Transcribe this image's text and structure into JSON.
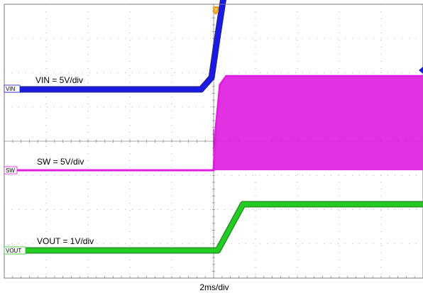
{
  "chart_data": {
    "type": "line",
    "title": "",
    "timebase": "2ms/div",
    "grid": {
      "divisions_x": 10,
      "divisions_y": 8,
      "minor_ticks": true
    },
    "trigger_marker": "T",
    "series": [
      {
        "name": "VIN",
        "annotation": "VIN = 5V/div",
        "color": "#1a1ae6",
        "x_div": [
          0,
          4.7,
          4.95,
          5.1,
          5.25,
          5.45,
          10
        ],
        "y_div": [
          0,
          0,
          0.35,
          1.6,
          2.8,
          3.3,
          3.3
        ]
      },
      {
        "name": "SW",
        "annotation": "SW = 5V/div",
        "color": "#e020e0",
        "x_div": [
          0,
          5.0,
          5.05,
          5.15,
          5.3,
          10
        ],
        "y_div": [
          0,
          0,
          1.2,
          2.5,
          2.75,
          2.75
        ]
      },
      {
        "name": "VOUT",
        "annotation": "VOUT = 1V/div",
        "color": "#22cc22",
        "x_div": [
          0,
          5.1,
          5.7,
          10
        ],
        "y_div": [
          0,
          0,
          1.35,
          1.35
        ]
      }
    ]
  }
}
